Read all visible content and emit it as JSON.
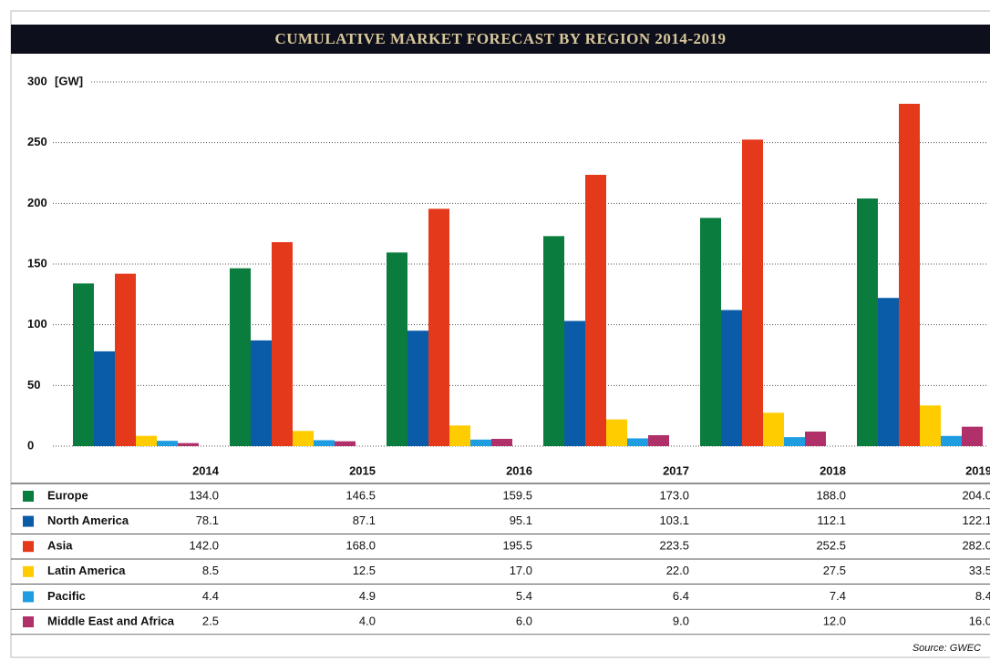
{
  "chart_data": {
    "type": "bar",
    "title": "CUMULATIVE MARKET FORECAST BY REGION 2014-2019",
    "y_unit": "[GW]",
    "source": "Source: GWEC",
    "categories": [
      "2014",
      "2015",
      "2016",
      "2017",
      "2018",
      "2019"
    ],
    "ylim": [
      0,
      300
    ],
    "yticks": [
      0,
      50,
      100,
      150,
      200,
      250,
      300
    ],
    "grid": true,
    "series": [
      {
        "name": "Europe",
        "color": "#0a7d3e",
        "values": [
          134.0,
          146.5,
          159.5,
          173.0,
          188.0,
          204.0
        ],
        "value_labels": [
          "134.0",
          "146.5",
          "159.5",
          "173.0",
          "188.0",
          "204.0"
        ]
      },
      {
        "name": "North America",
        "color": "#0b5ca8",
        "values": [
          78.1,
          87.1,
          95.1,
          103.1,
          112.1,
          122.1
        ],
        "value_labels": [
          "78.1",
          "87.1",
          "95.1",
          "103.1",
          "112.1",
          "122.1"
        ]
      },
      {
        "name": "Asia",
        "color": "#e5391c",
        "values": [
          142.0,
          168.0,
          195.5,
          223.5,
          252.5,
          282.0
        ],
        "value_labels": [
          "142.0",
          "168.0",
          "195.5",
          "223.5",
          "252.5",
          "282.0"
        ]
      },
      {
        "name": "Latin America",
        "color": "#ffcc00",
        "values": [
          8.5,
          12.5,
          17.0,
          22.0,
          27.5,
          33.5
        ],
        "value_labels": [
          "8.5",
          "12.5",
          "17.0",
          "22.0",
          "27.5",
          "33.5"
        ]
      },
      {
        "name": "Pacific",
        "color": "#1e9de0",
        "values": [
          4.4,
          4.9,
          5.4,
          6.4,
          7.4,
          8.4
        ],
        "value_labels": [
          "4.4",
          "4.9",
          "5.4",
          "6.4",
          "7.4",
          "8.4"
        ]
      },
      {
        "name": "Middle East and Africa",
        "color": "#b0306a",
        "values": [
          2.5,
          4.0,
          6.0,
          9.0,
          12.0,
          16.0
        ],
        "value_labels": [
          "2.5",
          "4.0",
          "6.0",
          "9.0",
          "12.0",
          "16.0"
        ]
      }
    ]
  }
}
